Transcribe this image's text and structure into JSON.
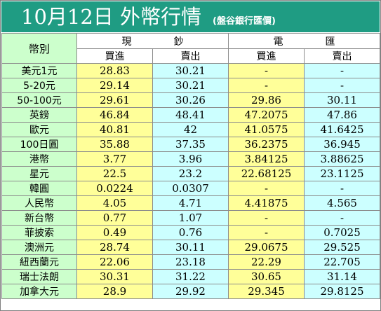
{
  "header": {
    "title": "10月12日 外幣行情",
    "subtitle": "(盤谷銀行匯價)"
  },
  "columns": {
    "currency": "幣別",
    "cash_group_a": "現",
    "cash_group_b": "鈔",
    "tt_group_a": "電",
    "tt_group_b": "匯",
    "buy": "買進",
    "sell": "賣出"
  },
  "rows": [
    {
      "name": "美元1元",
      "cash_buy": "28.83",
      "cash_sell": "30.21",
      "tt_buy": "-",
      "tt_sell": "-"
    },
    {
      "name": "5-20元",
      "cash_buy": "29.14",
      "cash_sell": "30.21",
      "tt_buy": "-",
      "tt_sell": "-"
    },
    {
      "name": "50-100元",
      "cash_buy": "29.61",
      "cash_sell": "30.26",
      "tt_buy": "29.86",
      "tt_sell": "30.11"
    },
    {
      "name": "英鎊",
      "cash_buy": "46.84",
      "cash_sell": "48.41",
      "tt_buy": "47.2075",
      "tt_sell": "47.86"
    },
    {
      "name": "歐元",
      "cash_buy": "40.81",
      "cash_sell": "42",
      "tt_buy": "41.0575",
      "tt_sell": "41.6425"
    },
    {
      "name": "100日圓",
      "cash_buy": "35.88",
      "cash_sell": "37.35",
      "tt_buy": "36.2375",
      "tt_sell": "36.945"
    },
    {
      "name": "港幣",
      "cash_buy": "3.77",
      "cash_sell": "3.96",
      "tt_buy": "3.84125",
      "tt_sell": "3.88625"
    },
    {
      "name": "星元",
      "cash_buy": "22.5",
      "cash_sell": "23.2",
      "tt_buy": "22.68125",
      "tt_sell": "23.1125"
    },
    {
      "name": "韓圓",
      "cash_buy": "0.0224",
      "cash_sell": "0.0307",
      "tt_buy": "-",
      "tt_sell": "-"
    },
    {
      "name": "人民幣",
      "cash_buy": "4.05",
      "cash_sell": "4.71",
      "tt_buy": "4.41875",
      "tt_sell": "4.565"
    },
    {
      "name": "新台幣",
      "cash_buy": "0.77",
      "cash_sell": "1.07",
      "tt_buy": "-",
      "tt_sell": "-"
    },
    {
      "name": "菲披索",
      "cash_buy": "0.49",
      "cash_sell": "0.76",
      "tt_buy": "-",
      "tt_sell": "0.7025"
    },
    {
      "name": "澳洲元",
      "cash_buy": "28.74",
      "cash_sell": "30.11",
      "tt_buy": "29.0675",
      "tt_sell": "29.525"
    },
    {
      "name": "紐西蘭元",
      "cash_buy": "22.06",
      "cash_sell": "23.18",
      "tt_buy": "22.29",
      "tt_sell": "22.705"
    },
    {
      "name": "瑞士法朗",
      "cash_buy": "30.31",
      "cash_sell": "31.22",
      "tt_buy": "30.65",
      "tt_sell": "31.14"
    },
    {
      "name": "加拿大元",
      "cash_buy": "28.9",
      "cash_sell": "29.92",
      "tt_buy": "29.345",
      "tt_sell": "29.8125"
    }
  ]
}
